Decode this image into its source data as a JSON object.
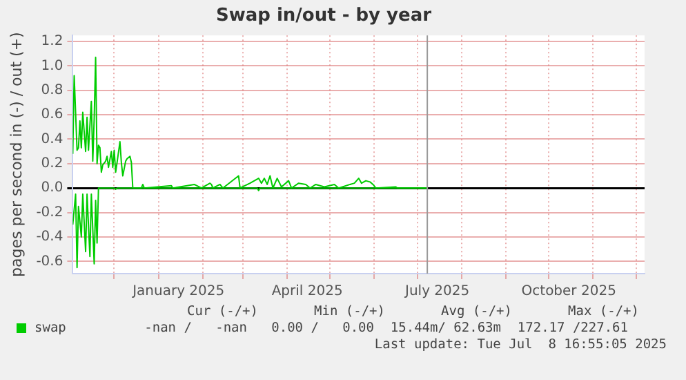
{
  "chart_data": {
    "type": "line",
    "title": "Swap in/out - by year",
    "ylabel": "pages per second in (-) / out (+)",
    "ylim": [
      -0.7,
      1.25
    ],
    "yticks": [
      {
        "value": -0.6,
        "label": "-0.6"
      },
      {
        "value": -0.4,
        "label": "-0.4"
      },
      {
        "value": -0.2,
        "label": "-0.2"
      },
      {
        "value": 0,
        "label": "0.0"
      },
      {
        "value": 0.2,
        "label": "0.2"
      },
      {
        "value": 0.4,
        "label": "0.4"
      },
      {
        "value": 0.6,
        "label": "0.6"
      },
      {
        "value": 0.8,
        "label": "0.8"
      },
      {
        "value": 1,
        "label": "1.0"
      },
      {
        "value": 1.2,
        "label": "1.2"
      }
    ],
    "xlim": [
      "2024-11-02",
      "2025-12-07"
    ],
    "xticks": [
      {
        "value": "2024-12-01",
        "label": null
      },
      {
        "value": "2025-01-01",
        "label": null
      },
      {
        "value": "2025-01-15",
        "label": "January 2025"
      },
      {
        "value": "2025-02-01",
        "label": null
      },
      {
        "value": "2025-03-01",
        "label": null
      },
      {
        "value": "2025-04-01",
        "label": null
      },
      {
        "value": "2025-04-15",
        "label": "April 2025"
      },
      {
        "value": "2025-05-01",
        "label": null
      },
      {
        "value": "2025-06-01",
        "label": null
      },
      {
        "value": "2025-07-01",
        "label": null
      },
      {
        "value": "2025-07-15",
        "label": "July 2025"
      },
      {
        "value": "2025-08-01",
        "label": null
      },
      {
        "value": "2025-09-01",
        "label": null
      },
      {
        "value": "2025-10-01",
        "label": null
      },
      {
        "value": "2025-10-15",
        "label": "October 2025"
      },
      {
        "value": "2025-11-01",
        "label": null
      },
      {
        "value": "2025-12-01",
        "label": null
      }
    ],
    "grid": true,
    "legend": "bottom",
    "marker": "none",
    "line_style": "solid",
    "ref_lines": [
      {
        "axis": "x",
        "value": "2025-07-08",
        "label": null,
        "color": "#999999"
      }
    ],
    "series": [
      {
        "name": "swap",
        "color": "#00cc00",
        "x": [
          "2024-11-02",
          "2024-11-03",
          "2024-11-05",
          "2024-11-06",
          "2024-11-07",
          "2024-11-08",
          "2024-11-09",
          "2024-11-11",
          "2024-11-12",
          "2024-11-13",
          "2024-11-15",
          "2024-11-16",
          "2024-11-17",
          "2024-11-18",
          "2024-11-19",
          "2024-11-20",
          "2024-11-21",
          "2024-11-22",
          "2024-11-23",
          "2024-11-25",
          "2024-11-26",
          "2024-11-27",
          "2024-11-29",
          "2024-11-30",
          "2024-12-01",
          "2024-12-02",
          "2024-12-03",
          "2024-12-05",
          "2024-12-06",
          "2024-12-07",
          "2024-12-09",
          "2024-12-10",
          "2024-12-12",
          "2024-12-13",
          "2024-12-14",
          "2024-12-20",
          "2024-12-21",
          "2024-12-22",
          "2025-01-10",
          "2025-01-11",
          "2025-01-21",
          "2025-01-26",
          "2025-01-31",
          "2025-02-06",
          "2025-02-07",
          "2025-02-08",
          "2025-02-13",
          "2025-02-15",
          "2025-02-26",
          "2025-02-27",
          "2025-03-06",
          "2025-03-12",
          "2025-03-14",
          "2025-03-16",
          "2025-03-18",
          "2025-03-20",
          "2025-03-22",
          "2025-03-25",
          "2025-03-28",
          "2025-04-02",
          "2025-04-04",
          "2025-04-09",
          "2025-04-14",
          "2025-04-17",
          "2025-04-21",
          "2025-04-27",
          "2025-05-04",
          "2025-05-07",
          "2025-05-15",
          "2025-05-18",
          "2025-05-21",
          "2025-05-23",
          "2025-05-26",
          "2025-05-29",
          "2025-05-31",
          "2025-06-02",
          "2025-06-16",
          "2025-06-17",
          "2025-07-08"
        ],
        "values": [
          0.28,
          0.92,
          0.31,
          0.33,
          0.55,
          0.33,
          0.62,
          0.3,
          0.58,
          0.31,
          0.71,
          0.22,
          0.57,
          1.07,
          0.2,
          0.35,
          0.33,
          0.13,
          0.19,
          0.22,
          0.26,
          0.17,
          0.3,
          0.17,
          0.31,
          0.13,
          0.21,
          0.38,
          0.21,
          0.1,
          0.22,
          0.24,
          0.26,
          0.21,
          0,
          0,
          0.03,
          0,
          0.02,
          0,
          0.02,
          0.03,
          0,
          0.04,
          0.03,
          0,
          0.03,
          0,
          0.1,
          0,
          0.04,
          0.08,
          0.04,
          0.08,
          0.03,
          0.1,
          0,
          0.08,
          0.01,
          0.06,
          0,
          0.04,
          0.03,
          0,
          0.03,
          0.01,
          0.03,
          0,
          0.03,
          0.04,
          0.08,
          0.04,
          0.06,
          0.05,
          0.03,
          0,
          0.01,
          0,
          0
        ]
      },
      {
        "color": "#00cc00",
        "x": [
          "2024-11-02",
          "2024-11-04",
          "2024-11-05",
          "2024-11-06",
          "2024-11-08",
          "2024-11-09",
          "2024-11-11",
          "2024-11-12",
          "2024-11-14",
          "2024-11-15",
          "2024-11-17",
          "2024-11-18",
          "2024-11-19",
          "2024-11-20",
          "2024-12-01",
          "2024-12-02",
          "2024-12-03",
          "2025-03-11",
          "2025-03-12",
          "2025-03-13",
          "2025-07-08"
        ],
        "values": [
          -0.3,
          -0.05,
          -0.65,
          -0.15,
          -0.4,
          -0.05,
          -0.52,
          -0.05,
          -0.56,
          -0.05,
          -0.62,
          -0.1,
          -0.45,
          0,
          0,
          -0.01,
          0,
          0,
          -0.02,
          0,
          0
        ]
      }
    ],
    "annotations": [
      "Cur (-/+)",
      "Min (-/+)",
      "Avg (-/+)",
      "Max (-/+)",
      "-nan /   -nan",
      "0.00 /   0.00",
      "15.44m/ 62.63m",
      "172.17 /227.61",
      "Last update: Tue Jul  8 16:55:05 2025"
    ]
  }
}
